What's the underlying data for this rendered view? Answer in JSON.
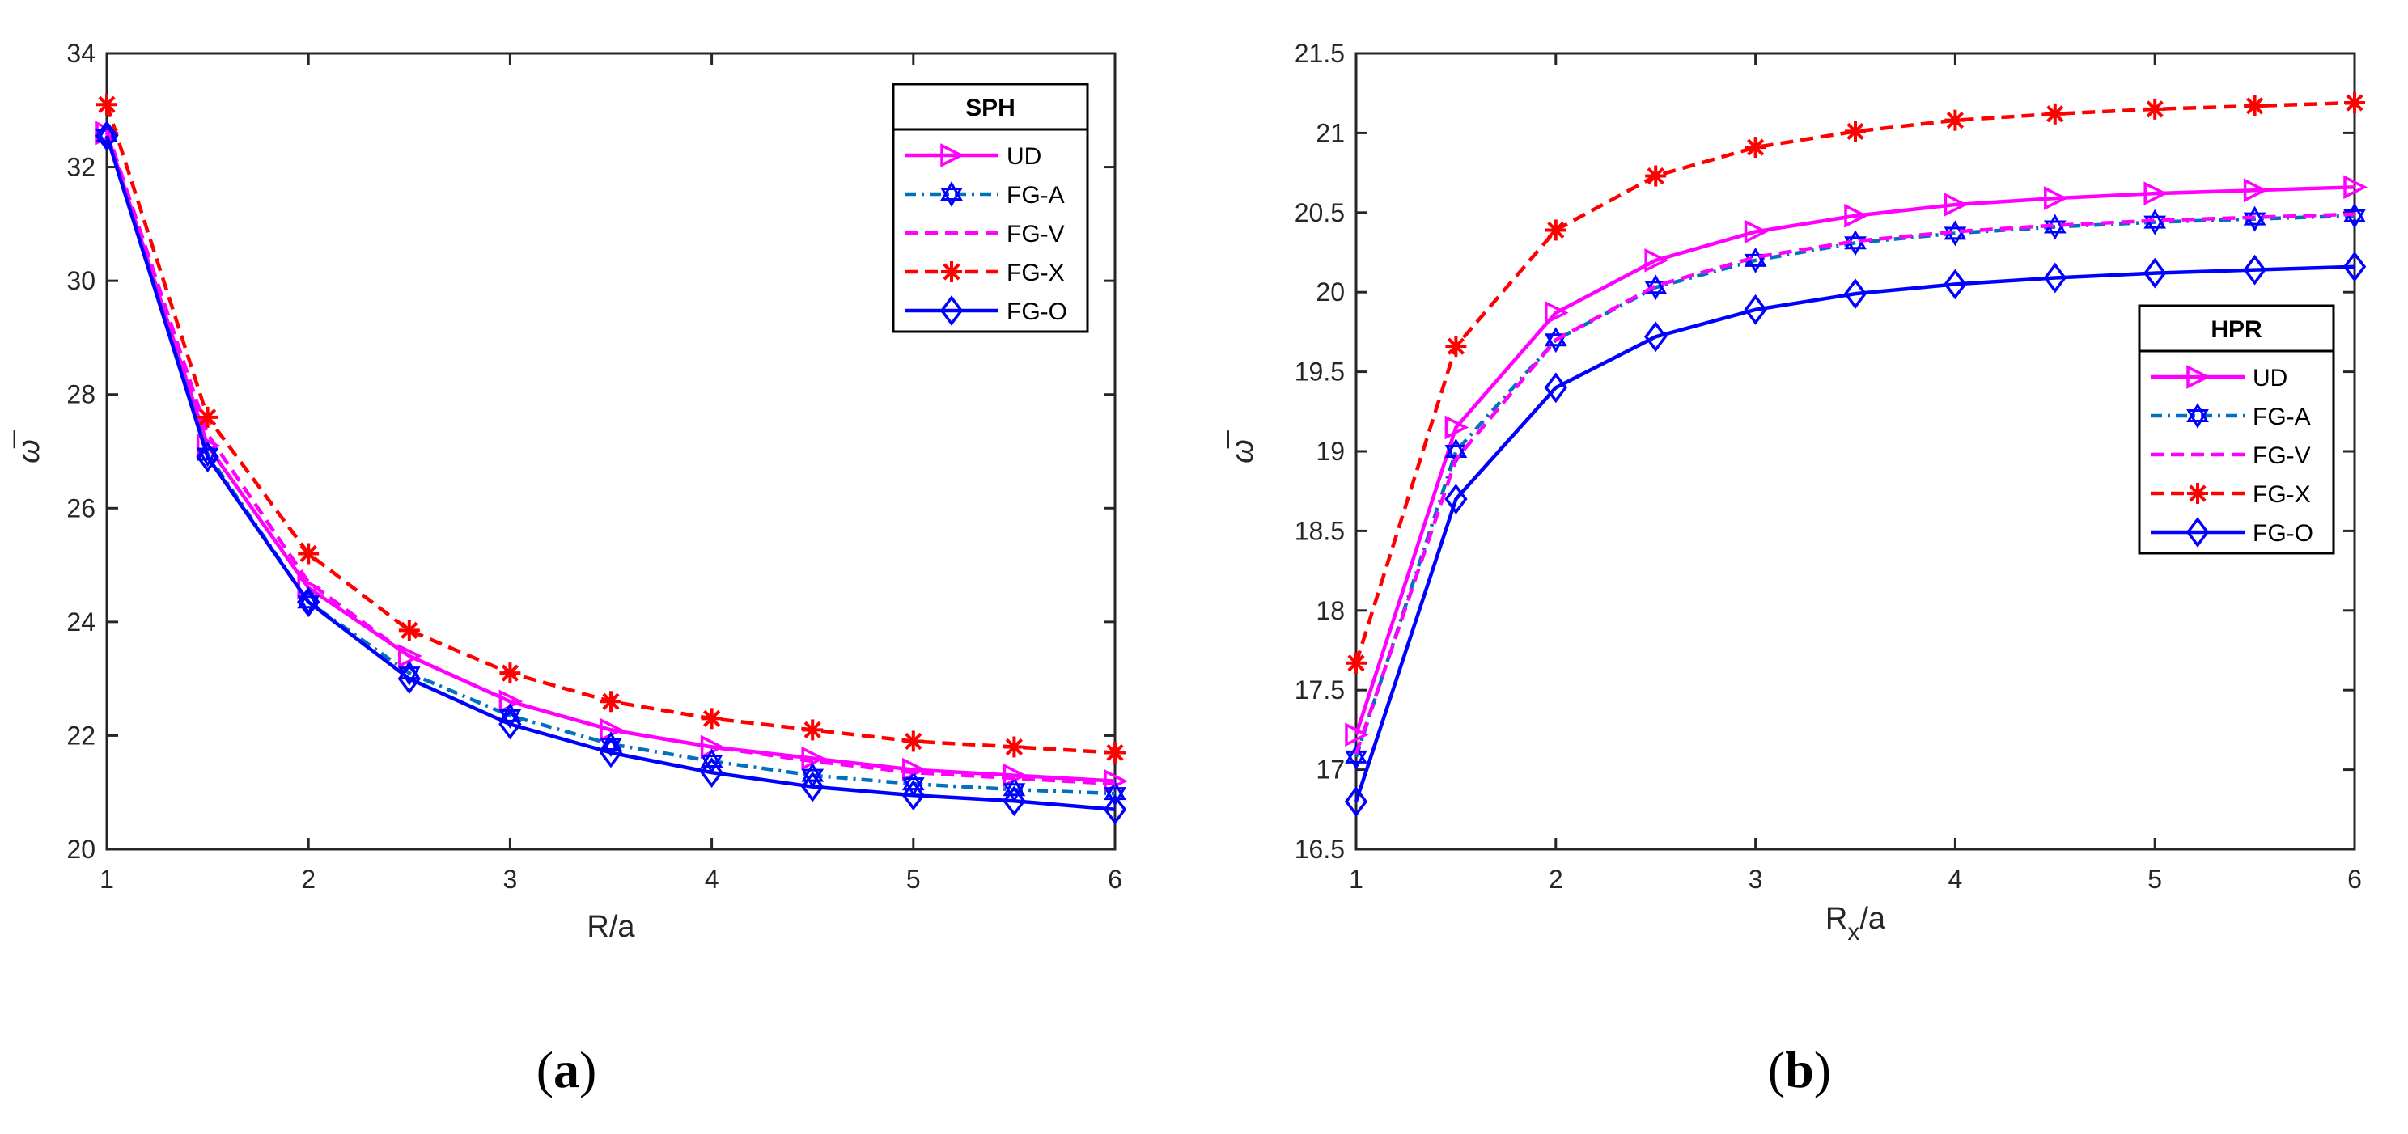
{
  "chart_data": [
    {
      "type": "line",
      "caption_open": "(",
      "caption": "a",
      "caption_close": ")",
      "title": "",
      "legend_title": "SPH",
      "legend_position": "top-right",
      "xlabel": "R/a",
      "xlabel_sub": "",
      "xlabel_rest": "",
      "ylabel": "ω̅",
      "xlim": [
        1,
        6
      ],
      "ylim": [
        20,
        34
      ],
      "xticks": [
        1,
        2,
        3,
        4,
        5,
        6
      ],
      "yticks": [
        20,
        22,
        24,
        26,
        28,
        30,
        32,
        34
      ],
      "x": [
        1,
        1.5,
        2,
        2.5,
        3,
        3.5,
        4,
        4.5,
        5,
        5.5,
        6
      ],
      "series": [
        {
          "name": "UD",
          "color": "#ff00ff",
          "dash": "solid",
          "marker": "triangle-right",
          "values": [
            32.6,
            27.1,
            24.6,
            23.4,
            22.6,
            22.1,
            21.8,
            21.6,
            21.4,
            21.3,
            21.2
          ]
        },
        {
          "name": "FG-A",
          "color": "#0072bd",
          "marker_color": "#0000ff",
          "dash": "dashdot",
          "marker": "hexagram",
          "values": [
            32.55,
            26.95,
            24.35,
            23.1,
            22.35,
            21.85,
            21.55,
            21.3,
            21.15,
            21.05,
            20.98
          ]
        },
        {
          "name": "FG-V",
          "color": "#ff00ff",
          "dash": "dashed",
          "marker": "none",
          "values": [
            32.65,
            27.3,
            24.7,
            23.4,
            22.6,
            22.1,
            21.8,
            21.55,
            21.35,
            21.25,
            21.15
          ]
        },
        {
          "name": "FG-X",
          "color": "#ff0000",
          "dash": "dashed",
          "marker": "asterisk",
          "values": [
            33.1,
            27.6,
            25.2,
            23.85,
            23.1,
            22.6,
            22.3,
            22.1,
            21.9,
            21.8,
            21.7
          ]
        },
        {
          "name": "FG-O",
          "color": "#0000ff",
          "dash": "solid",
          "marker": "diamond",
          "values": [
            32.55,
            26.9,
            24.35,
            23.0,
            22.2,
            21.7,
            21.35,
            21.1,
            20.95,
            20.85,
            20.7
          ]
        }
      ]
    },
    {
      "type": "line",
      "caption_open": "(",
      "caption": "b",
      "caption_close": ")",
      "title": "",
      "legend_title": "HPR",
      "legend_position": "right",
      "xlabel": "R",
      "xlabel_sub": "x",
      "xlabel_rest": "/a",
      "ylabel": "ω̅",
      "xlim": [
        1,
        6
      ],
      "ylim": [
        16.5,
        21.5
      ],
      "xticks": [
        1,
        2,
        3,
        4,
        5,
        6
      ],
      "yticks": [
        16.5,
        17,
        17.5,
        18,
        18.5,
        19,
        19.5,
        20,
        20.5,
        21,
        21.5
      ],
      "x": [
        1,
        1.5,
        2,
        2.5,
        3,
        3.5,
        4,
        4.5,
        5,
        5.5,
        6
      ],
      "series": [
        {
          "name": "UD",
          "color": "#ff00ff",
          "dash": "solid",
          "marker": "triangle-right",
          "values": [
            17.22,
            19.15,
            19.87,
            20.2,
            20.38,
            20.48,
            20.55,
            20.59,
            20.62,
            20.64,
            20.66
          ]
        },
        {
          "name": "FG-A",
          "color": "#0072bd",
          "marker_color": "#0000ff",
          "dash": "dashdot",
          "marker": "hexagram",
          "values": [
            17.08,
            19.0,
            19.7,
            20.03,
            20.2,
            20.31,
            20.37,
            20.41,
            20.44,
            20.46,
            20.48
          ]
        },
        {
          "name": "FG-V",
          "color": "#ff00ff",
          "dash": "dashed",
          "marker": "none",
          "values": [
            17.1,
            18.95,
            19.7,
            20.04,
            20.22,
            20.32,
            20.38,
            20.42,
            20.45,
            20.47,
            20.49
          ]
        },
        {
          "name": "FG-X",
          "color": "#ff0000",
          "dash": "dashed",
          "marker": "asterisk",
          "values": [
            17.67,
            19.66,
            20.39,
            20.73,
            20.91,
            21.01,
            21.08,
            21.12,
            21.15,
            21.17,
            21.19
          ]
        },
        {
          "name": "FG-O",
          "color": "#0000ff",
          "dash": "solid",
          "marker": "diamond",
          "values": [
            16.8,
            18.7,
            19.4,
            19.72,
            19.89,
            19.99,
            20.05,
            20.09,
            20.12,
            20.14,
            20.16
          ]
        }
      ]
    }
  ]
}
